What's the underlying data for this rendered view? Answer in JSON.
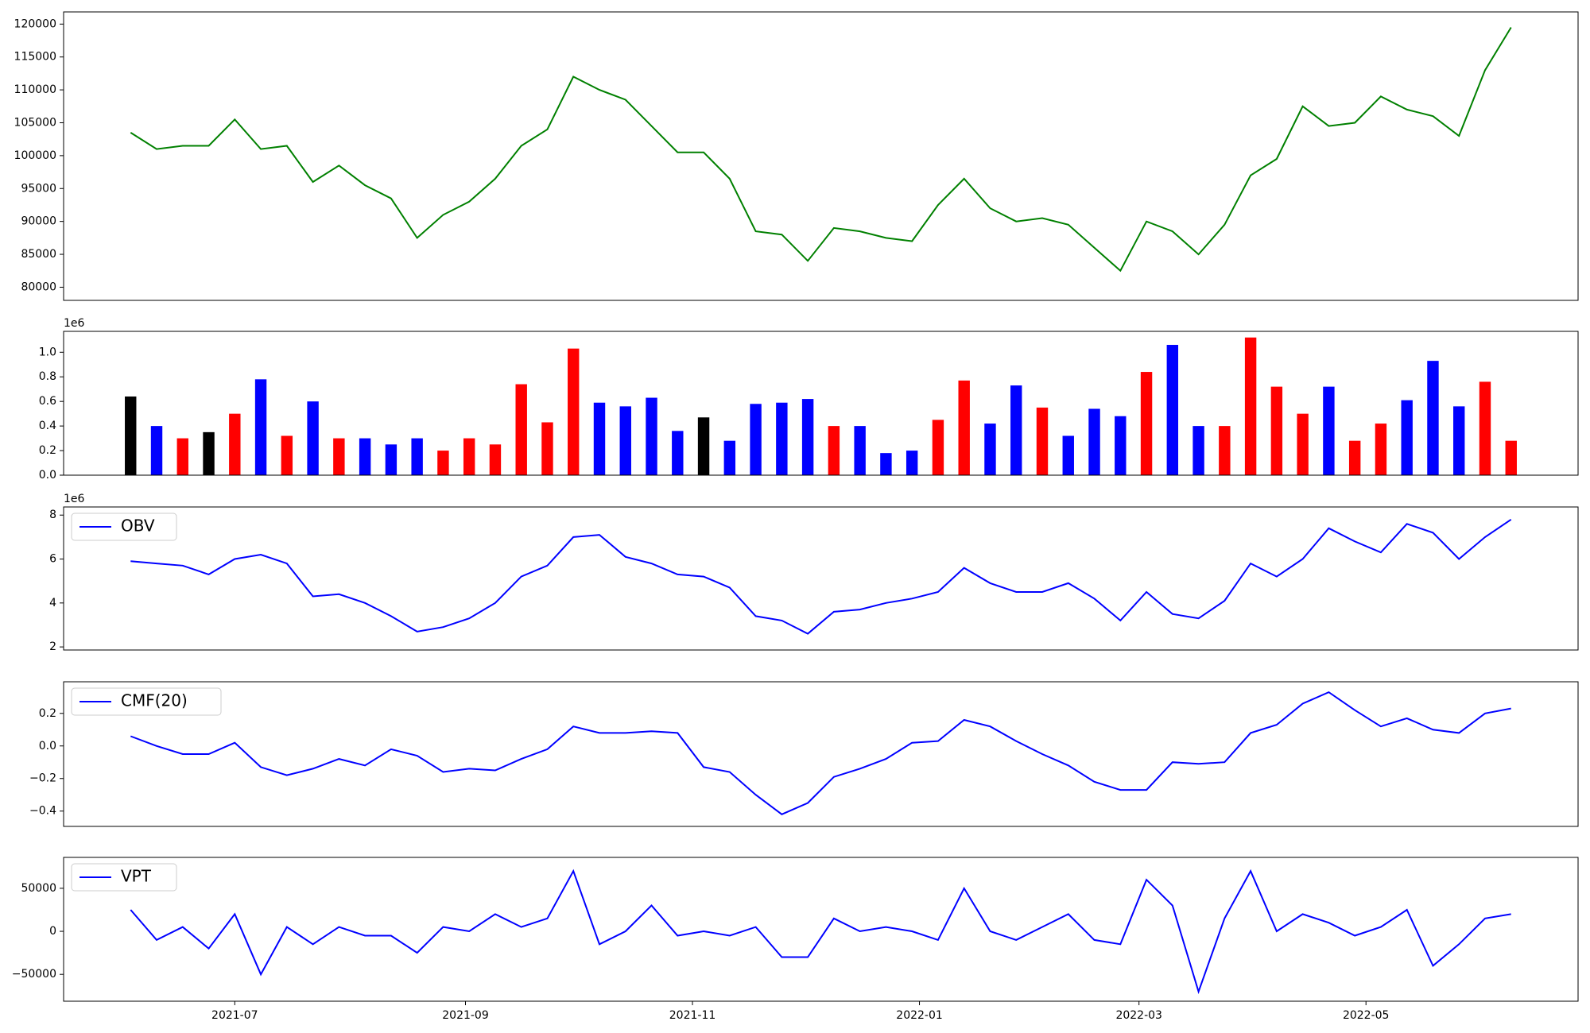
{
  "chart_data": [
    {
      "type": "line",
      "color": "green",
      "x": [
        "2021-06-03",
        "2021-06-10",
        "2021-06-17",
        "2021-06-24",
        "2021-07-01",
        "2021-07-08",
        "2021-07-15",
        "2021-07-22",
        "2021-07-29",
        "2021-08-05",
        "2021-08-12",
        "2021-08-19",
        "2021-08-26",
        "2021-09-02",
        "2021-09-09",
        "2021-09-16",
        "2021-09-23",
        "2021-09-30",
        "2021-10-07",
        "2021-10-14",
        "2021-10-21",
        "2021-10-28",
        "2021-11-04",
        "2021-11-11",
        "2021-11-18",
        "2021-11-25",
        "2021-12-02",
        "2021-12-09",
        "2021-12-16",
        "2021-12-23",
        "2021-12-30",
        "2022-01-06",
        "2022-01-13",
        "2022-01-20",
        "2022-01-27",
        "2022-02-03",
        "2022-02-10",
        "2022-02-17",
        "2022-02-24",
        "2022-03-03",
        "2022-03-10",
        "2022-03-17",
        "2022-03-24",
        "2022-03-31",
        "2022-04-07",
        "2022-04-14",
        "2022-04-21",
        "2022-04-28",
        "2022-05-05",
        "2022-05-12",
        "2022-05-19",
        "2022-05-26",
        "2022-06-02",
        "2022-06-09"
      ],
      "xlim": [
        "2021-05-16",
        "2022-06-27"
      ],
      "values": [
        103500,
        101000,
        101500,
        101500,
        105500,
        101000,
        101500,
        96000,
        98500,
        95500,
        93500,
        87500,
        91000,
        93000,
        96500,
        101500,
        104000,
        112000,
        110000,
        108500,
        104500,
        100500,
        100500,
        96500,
        88500,
        88000,
        84000,
        89000,
        88500,
        87500,
        87000,
        92500,
        96500,
        92000,
        90000,
        90500,
        89500,
        86000,
        82500,
        90000,
        88500,
        85000,
        89500,
        97000,
        99500,
        107500,
        104500,
        105000,
        109000,
        107000,
        106000,
        103000,
        113000,
        119500
      ],
      "ylim": [
        78000,
        121850
      ],
      "yticks": [
        80000,
        85000,
        90000,
        95000,
        100000,
        105000,
        110000,
        115000,
        120000
      ]
    },
    {
      "type": "bar",
      "offset_label": "1e6",
      "values": [
        0.64,
        0.4,
        0.3,
        0.35,
        0.5,
        0.78,
        0.32,
        0.6,
        0.3,
        0.3,
        0.25,
        0.3,
        0.2,
        0.3,
        0.25,
        0.74,
        0.43,
        1.03,
        0.59,
        0.56,
        0.63,
        0.36,
        0.47,
        0.28,
        0.58,
        0.59,
        0.62,
        0.4,
        0.4,
        0.18,
        0.2,
        0.45,
        0.77,
        0.42,
        0.73,
        0.55,
        0.32,
        0.54,
        0.48,
        0.84,
        1.06,
        0.4,
        0.4,
        1.12,
        0.72,
        0.5,
        0.72,
        0.28,
        0.42,
        0.61,
        0.93,
        0.56,
        0.76,
        0.28
      ],
      "colors": [
        "black",
        "blue",
        "red",
        "black",
        "red",
        "blue",
        "red",
        "blue",
        "red",
        "blue",
        "blue",
        "blue",
        "red",
        "red",
        "red",
        "red",
        "red",
        "red",
        "blue",
        "blue",
        "blue",
        "blue",
        "black",
        "blue",
        "blue",
        "blue",
        "blue",
        "red",
        "blue",
        "blue",
        "blue",
        "red",
        "red",
        "blue",
        "blue",
        "red",
        "blue",
        "blue",
        "blue",
        "red",
        "blue",
        "blue",
        "red",
        "red",
        "red",
        "red",
        "blue",
        "red",
        "red",
        "blue",
        "blue",
        "blue",
        "red",
        "red"
      ],
      "ylim": [
        0,
        1.17
      ],
      "yticks": [
        {
          "value": 0,
          "label": "0.0"
        },
        {
          "value": 0.2,
          "label": "0.2"
        },
        {
          "value": 0.4,
          "label": "0.4"
        },
        {
          "value": 0.6,
          "label": "0.6"
        },
        {
          "value": 0.8,
          "label": "0.8"
        },
        {
          "value": 1,
          "label": "1.0"
        }
      ]
    },
    {
      "type": "line",
      "offset_label": "1e6",
      "legend": "upper left",
      "series": [
        {
          "name": "OBV",
          "color": "blue",
          "values": [
            5.9,
            5.8,
            5.7,
            5.3,
            6.0,
            6.2,
            5.8,
            4.3,
            4.4,
            4.0,
            3.4,
            2.7,
            2.9,
            3.3,
            4.0,
            5.2,
            5.7,
            7.0,
            7.1,
            6.1,
            5.8,
            5.3,
            5.2,
            4.7,
            3.4,
            3.2,
            2.6,
            3.6,
            3.7,
            4.0,
            4.2,
            4.5,
            5.6,
            4.9,
            4.5,
            4.5,
            4.9,
            4.2,
            3.2,
            4.5,
            3.5,
            3.3,
            4.1,
            5.8,
            5.2,
            6.0,
            7.4,
            6.8,
            6.3,
            7.6,
            7.2,
            6.0,
            7.0,
            7.8
          ]
        }
      ],
      "ylim": [
        1.86,
        8.37
      ],
      "yticks": [
        2,
        4,
        6,
        8
      ]
    },
    {
      "type": "line",
      "legend": "upper left",
      "series": [
        {
          "name": "CMF(20)",
          "color": "blue",
          "values": [
            0.06,
            0.0,
            -0.05,
            -0.05,
            0.02,
            -0.13,
            -0.18,
            -0.14,
            -0.08,
            -0.12,
            -0.02,
            -0.06,
            -0.16,
            -0.14,
            -0.15,
            -0.08,
            -0.02,
            0.12,
            0.08,
            0.08,
            0.09,
            0.08,
            -0.13,
            -0.16,
            -0.3,
            -0.42,
            -0.35,
            -0.19,
            -0.14,
            -0.08,
            0.02,
            0.03,
            0.16,
            0.12,
            0.03,
            -0.05,
            -0.12,
            -0.22,
            -0.27,
            -0.27,
            -0.1,
            -0.11,
            -0.1,
            0.08,
            0.13,
            0.26,
            0.33,
            0.22,
            0.12,
            0.17,
            0.1,
            0.08,
            0.2,
            0.23
          ]
        }
      ],
      "ylim": [
        -0.494,
        0.394
      ],
      "yticks": [
        {
          "value": -0.4,
          "label": "−0.4"
        },
        {
          "value": -0.2,
          "label": "−0.2"
        },
        {
          "value": 0,
          "label": "0.0"
        },
        {
          "value": 0.2,
          "label": "0.2"
        }
      ]
    },
    {
      "type": "line",
      "legend": "upper left",
      "series": [
        {
          "name": "VPT",
          "color": "blue",
          "values": [
            25000,
            -10000,
            5000,
            -20000,
            20000,
            -50000,
            5000,
            -15000,
            5000,
            -5000,
            -5000,
            -25000,
            5000,
            0,
            20000,
            5000,
            15000,
            70000,
            -15000,
            0,
            30000,
            -5000,
            0,
            -5000,
            5000,
            -30000,
            -30000,
            15000,
            0,
            5000,
            0,
            -10000,
            50000,
            0,
            -10000,
            5000,
            20000,
            -10000,
            -15000,
            60000,
            30000,
            -70000,
            15000,
            70000,
            0,
            20000,
            10000,
            -5000,
            5000,
            25000,
            -40000,
            -15000,
            15000,
            20000
          ]
        }
      ],
      "ylim": [
        -81200,
        85900
      ],
      "yticks": [
        {
          "value": -50000,
          "label": "−50000"
        },
        0,
        50000
      ],
      "xticks": [
        "2021-07",
        "2021-09",
        "2021-11",
        "2022-01",
        "2022-03",
        "2022-05"
      ]
    }
  ]
}
